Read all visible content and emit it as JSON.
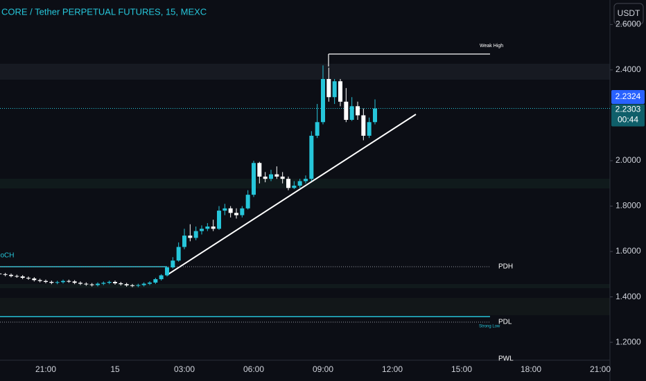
{
  "chart_data": {
    "type": "candlestick",
    "title": "CORE / Tether PERPETUAL FUTURES, 15, MEXC",
    "currency_button": "USDT",
    "categories": [
      null,
      null,
      null,
      null,
      null,
      null,
      null,
      null,
      "21:00",
      null,
      null,
      null,
      null,
      null,
      null,
      null,
      null,
      null,
      null,
      null,
      "15",
      null,
      null,
      null,
      null,
      null,
      null,
      null,
      null,
      null,
      null,
      null,
      "03:00",
      null,
      null,
      null,
      null,
      null,
      null,
      null,
      null,
      null,
      null,
      null,
      "06:00",
      null,
      null,
      null,
      null,
      null,
      null,
      null,
      null,
      null,
      null,
      null,
      "09:00",
      null,
      null,
      null,
      null,
      null,
      null,
      null,
      null,
      null,
      null,
      null,
      "12:00",
      null,
      null,
      null,
      null,
      null,
      null,
      null,
      null,
      null,
      null,
      null,
      "15:00",
      null,
      null,
      null,
      null,
      null,
      null,
      null,
      null,
      null,
      null,
      null,
      "18:00",
      null,
      null,
      null,
      null,
      null,
      null,
      null,
      null,
      null,
      null,
      null,
      "21:00",
      null
    ],
    "open": [
      1.503,
      1.5,
      1.497,
      1.492,
      1.49,
      1.484,
      1.481,
      1.474,
      1.47,
      1.466,
      1.462,
      1.465,
      1.47,
      1.468,
      1.462,
      1.458,
      1.455,
      1.452,
      1.458,
      1.462,
      1.466,
      1.46,
      1.456,
      1.451,
      1.449,
      1.452,
      1.458,
      1.463,
      1.478,
      1.495,
      1.53,
      1.56,
      1.62,
      1.67,
      1.66,
      1.69,
      1.7,
      1.71,
      1.7,
      1.78,
      1.79,
      1.77,
      1.76,
      1.79,
      1.85,
      1.99,
      1.93,
      1.92,
      1.94,
      1.93,
      1.92,
      1.88,
      1.89,
      1.91,
      1.92,
      2.11,
      2.17,
      2.36,
      2.28,
      2.35,
      2.26,
      2.18,
      2.24,
      2.2,
      2.11,
      2.17,
      null,
      null,
      null,
      null,
      null,
      null,
      null,
      null,
      null,
      null,
      null,
      null,
      null,
      null,
      null,
      null,
      null,
      null,
      null,
      null,
      null,
      null,
      null,
      null,
      null,
      null,
      null,
      null,
      null,
      null,
      null,
      null,
      null,
      null,
      null,
      null,
      null,
      null,
      null,
      null
    ],
    "high": [
      1.509,
      1.506,
      1.503,
      1.498,
      1.496,
      1.49,
      1.487,
      1.48,
      1.476,
      1.472,
      1.471,
      1.476,
      1.476,
      1.474,
      1.468,
      1.464,
      1.461,
      1.464,
      1.468,
      1.472,
      1.472,
      1.466,
      1.462,
      1.457,
      1.458,
      1.464,
      1.469,
      1.484,
      1.5,
      1.534,
      1.575,
      1.64,
      1.7,
      1.72,
      1.71,
      1.715,
      1.725,
      1.74,
      1.8,
      1.81,
      1.8,
      1.79,
      1.8,
      1.87,
      2.0,
      1.995,
      1.95,
      1.96,
      1.975,
      1.95,
      1.93,
      1.91,
      1.92,
      1.935,
      2.13,
      2.25,
      2.42,
      2.41,
      2.36,
      2.36,
      2.32,
      2.28,
      2.26,
      2.23,
      2.19,
      2.27,
      null,
      null,
      null,
      null,
      null,
      null,
      null,
      null,
      null,
      null,
      null,
      null,
      null,
      null,
      null,
      null,
      null,
      null,
      null,
      null,
      null,
      null,
      null,
      null,
      null,
      null,
      null,
      null,
      null,
      null,
      null,
      null,
      null,
      null,
      null,
      null,
      null,
      null,
      null,
      null
    ],
    "low": [
      1.494,
      1.491,
      1.486,
      1.484,
      1.478,
      1.475,
      1.468,
      1.464,
      1.46,
      1.456,
      1.456,
      1.459,
      1.462,
      1.456,
      1.452,
      1.449,
      1.446,
      1.446,
      1.452,
      1.456,
      1.454,
      1.45,
      1.445,
      1.443,
      1.443,
      1.446,
      1.452,
      1.457,
      1.472,
      1.49,
      1.525,
      1.555,
      1.61,
      1.645,
      1.65,
      1.675,
      1.69,
      1.69,
      1.695,
      1.76,
      1.75,
      1.745,
      1.75,
      1.785,
      1.84,
      1.9,
      1.905,
      1.91,
      1.92,
      1.9,
      1.87,
      1.875,
      1.88,
      1.9,
      1.91,
      2.1,
      2.16,
      2.26,
      2.25,
      2.24,
      2.17,
      2.175,
      2.18,
      2.09,
      2.1,
      2.16,
      null,
      null,
      null,
      null,
      null,
      null,
      null,
      null,
      null,
      null,
      null,
      null,
      null,
      null,
      null,
      null,
      null,
      null,
      null,
      null,
      null,
      null,
      null,
      null,
      null,
      null,
      null,
      null,
      null,
      null,
      null,
      null,
      null,
      null,
      null,
      null,
      null,
      null,
      null,
      null
    ],
    "close": [
      1.5,
      1.497,
      1.492,
      1.49,
      1.484,
      1.481,
      1.474,
      1.47,
      1.466,
      1.462,
      1.465,
      1.47,
      1.468,
      1.462,
      1.458,
      1.455,
      1.452,
      1.458,
      1.462,
      1.466,
      1.46,
      1.456,
      1.451,
      1.449,
      1.452,
      1.458,
      1.463,
      1.478,
      1.495,
      1.53,
      1.56,
      1.62,
      1.67,
      1.66,
      1.69,
      1.7,
      1.71,
      1.7,
      1.78,
      1.79,
      1.77,
      1.76,
      1.79,
      1.85,
      1.99,
      1.93,
      1.92,
      1.94,
      1.93,
      1.92,
      1.88,
      1.89,
      1.91,
      1.92,
      2.11,
      2.17,
      2.36,
      2.28,
      2.35,
      2.26,
      2.18,
      2.24,
      2.2,
      2.11,
      2.17,
      2.23,
      null,
      null,
      null,
      null,
      null,
      null,
      null,
      null,
      null,
      null,
      null,
      null,
      null,
      null,
      null,
      null,
      null,
      null,
      null,
      null,
      null,
      null,
      null,
      null,
      null,
      null,
      null,
      null,
      null,
      null,
      null,
      null,
      null,
      null,
      null,
      null,
      null,
      null,
      null,
      null
    ],
    "up_color": "#26c6da",
    "down_color": "#ffffff",
    "ylim": [
      1.121,
      2.708
    ],
    "yticks": [
      {
        "value": 1.2,
        "label": "1.2000"
      },
      {
        "value": 1.4,
        "label": "1.4000"
      },
      {
        "value": 1.6,
        "label": "1.6000"
      },
      {
        "value": 1.8,
        "label": "1.8000"
      },
      {
        "value": 2.0,
        "label": "2.0000"
      },
      {
        "value": 2.4,
        "label": "2.4000"
      },
      {
        "value": 2.6,
        "label": "2.6000"
      }
    ],
    "indicator_price": 2.2324,
    "last_price": 2.2303,
    "countdown": "00:44",
    "levels": [
      {
        "label": "Weak High",
        "value": 2.47
      },
      {
        "label": "PDH",
        "value": 1.533
      },
      {
        "label": "PDL",
        "value": 1.289
      },
      {
        "label": "PWL",
        "value": 1.127
      }
    ],
    "annotations": [
      "CHoCH",
      "Strong Low"
    ]
  }
}
